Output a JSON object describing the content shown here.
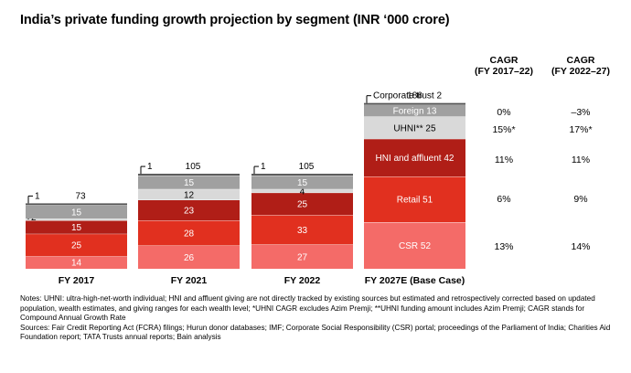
{
  "title": "India’s private funding growth projection by segment (INR ‘000 crore)",
  "chart_data": {
    "type": "bar",
    "stacked": true,
    "categories": [
      "FY 2017",
      "FY 2021",
      "FY 2022",
      "FY 2027E (Base Case)"
    ],
    "totals": [
      "73",
      "105",
      "105",
      "186"
    ],
    "series": [
      {
        "name": "CSR",
        "color": "#f46b68",
        "values": [
          14,
          26,
          27,
          52
        ],
        "labels": [
          "14",
          "26",
          "27",
          "CSR 52"
        ]
      },
      {
        "name": "Retail",
        "color": "#e1301f",
        "values": [
          25,
          28,
          33,
          51
        ],
        "labels": [
          "25",
          "28",
          "33",
          "Retail 51"
        ]
      },
      {
        "name": "HNI and affluent",
        "color": "#b01e17",
        "values": [
          15,
          23,
          25,
          42
        ],
        "labels": [
          "15",
          "23",
          "25",
          "HNI and affluent 42"
        ]
      },
      {
        "name": "UHNI**",
        "color": "#d9d9d9",
        "values": [
          2,
          12,
          4,
          25
        ],
        "labels": [
          "2",
          "12",
          "4",
          "UHNI** 25"
        ]
      },
      {
        "name": "Foreign",
        "color": "#a0a0a0",
        "values": [
          15,
          15,
          15,
          13
        ],
        "labels": [
          "15",
          "15",
          "15",
          "Foreign 13"
        ]
      },
      {
        "name": "Corporate trust",
        "color": "#555555",
        "values": [
          1,
          1,
          1,
          2
        ],
        "labels": [
          "1",
          "1",
          "1",
          "Corporate trust 2"
        ]
      }
    ],
    "cagr": {
      "headers": [
        {
          "line1": "CAGR",
          "line2": "(FY 2017–22)"
        },
        {
          "line1": "CAGR",
          "line2": "(FY 2022–27)"
        }
      ],
      "rows": [
        {
          "segment": "Foreign",
          "col1": "0%",
          "col2": "–3%"
        },
        {
          "segment": "UHNI**",
          "col1": "15%*",
          "col2": "17%*"
        },
        {
          "segment": "HNI and affluent",
          "col1": "11%",
          "col2": "11%"
        },
        {
          "segment": "Retail",
          "col1": "6%",
          "col2": "9%"
        },
        {
          "segment": "CSR",
          "col1": "13%",
          "col2": "14%"
        }
      ]
    }
  },
  "notes": [
    "Notes: UHNI: ultra-high-net-worth individual; HNI and affluent giving are not directly tracked by existing sources but estimated and retrospectively corrected based on updated population, wealth estimates, and giving ranges for each wealth level; *UHNI CAGR excludes Azim Premji; **UHNI funding amount includes Azim Premji; CAGR stands for Compound Annual Growth Rate",
    "Sources: Fair Credit Reporting Act (FCRA) filings; Hurun donor databases; IMF; Corporate Social Responsibility (CSR) portal; proceedings of the Parliament of India; Charities Aid Foundation report; TATA Trusts annual reports; Bain analysis"
  ]
}
